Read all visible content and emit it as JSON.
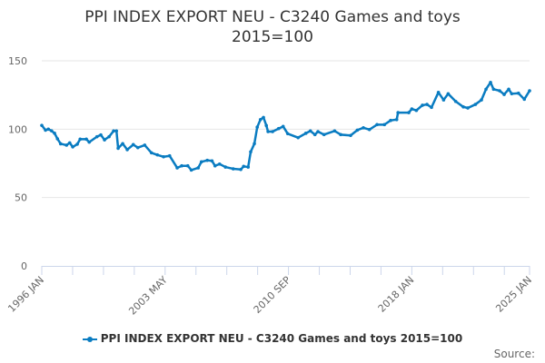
{
  "chart_data": {
    "type": "line",
    "title": "PPI INDEX EXPORT NEU - C3240 Games and toys",
    "subtitle": "2015=100",
    "xlabel": "",
    "ylabel": "",
    "ylim": [
      0,
      150
    ],
    "yticks": [
      0,
      50,
      100,
      150
    ],
    "xlim": [
      1996.0,
      2025.0
    ],
    "xtick_labels": [
      {
        "label": "1996 JAN",
        "x": 1996.0
      },
      {
        "label": "2003 MAY",
        "x": 2003.333
      },
      {
        "label": "2010 SEP",
        "x": 2010.667
      },
      {
        "label": "2018 JAN",
        "x": 2018.0
      },
      {
        "label": "2025 JAN",
        "x": 2025.0
      }
    ],
    "grid": true,
    "legend_position": "bottom",
    "series": [
      {
        "name": "PPI INDEX EXPORT NEU - C3240 Games and toys 2015=100",
        "color": "#0a7cc1",
        "points": [
          [
            1996.0,
            102.8
          ],
          [
            1996.22,
            99.3
          ],
          [
            1996.39,
            100.0
          ],
          [
            1996.58,
            98.8
          ],
          [
            1996.76,
            97.0
          ],
          [
            1996.93,
            93.0
          ],
          [
            1997.12,
            89.3
          ],
          [
            1997.47,
            88.3
          ],
          [
            1997.66,
            90.0
          ],
          [
            1997.84,
            87.0
          ],
          [
            1998.11,
            89.0
          ],
          [
            1998.28,
            92.7
          ],
          [
            1998.65,
            92.7
          ],
          [
            1998.82,
            90.5
          ],
          [
            1999.28,
            94.5
          ],
          [
            1999.51,
            95.8
          ],
          [
            1999.73,
            92.2
          ],
          [
            2000.0,
            94.5
          ],
          [
            2000.27,
            98.7
          ],
          [
            2000.44,
            98.7
          ],
          [
            2000.54,
            86.0
          ],
          [
            2000.81,
            89.4
          ],
          [
            2001.08,
            85.0
          ],
          [
            2001.44,
            88.7
          ],
          [
            2001.71,
            86.5
          ],
          [
            2002.12,
            88.3
          ],
          [
            2002.52,
            82.7
          ],
          [
            2002.87,
            81.2
          ],
          [
            2003.24,
            79.8
          ],
          [
            2003.6,
            80.5
          ],
          [
            2004.05,
            71.7
          ],
          [
            2004.32,
            73.2
          ],
          [
            2004.68,
            73.2
          ],
          [
            2004.89,
            70.1
          ],
          [
            2005.3,
            71.7
          ],
          [
            2005.49,
            76.1
          ],
          [
            2005.84,
            77.2
          ],
          [
            2006.12,
            76.8
          ],
          [
            2006.3,
            73.2
          ],
          [
            2006.57,
            74.5
          ],
          [
            2006.92,
            72.3
          ],
          [
            2007.38,
            71.0
          ],
          [
            2007.83,
            70.5
          ],
          [
            2008.0,
            72.8
          ],
          [
            2008.27,
            72.3
          ],
          [
            2008.42,
            83.4
          ],
          [
            2008.64,
            89.4
          ],
          [
            2008.81,
            101.5
          ],
          [
            2009.0,
            107.0
          ],
          [
            2009.18,
            108.6
          ],
          [
            2009.35,
            102.7
          ],
          [
            2009.45,
            98.2
          ],
          [
            2009.72,
            98.2
          ],
          [
            2010.08,
            100.4
          ],
          [
            2010.35,
            102.0
          ],
          [
            2010.62,
            96.7
          ],
          [
            2011.24,
            93.8
          ],
          [
            2011.7,
            97.0
          ],
          [
            2011.97,
            98.7
          ],
          [
            2012.24,
            96.0
          ],
          [
            2012.42,
            98.2
          ],
          [
            2012.78,
            96.0
          ],
          [
            2013.41,
            98.7
          ],
          [
            2013.77,
            96.0
          ],
          [
            2014.36,
            95.4
          ],
          [
            2014.76,
            99.3
          ],
          [
            2015.12,
            101.0
          ],
          [
            2015.48,
            99.7
          ],
          [
            2015.93,
            103.3
          ],
          [
            2016.37,
            103.3
          ],
          [
            2016.74,
            106.4
          ],
          [
            2017.1,
            107.0
          ],
          [
            2017.18,
            112.1
          ],
          [
            2017.82,
            112.1
          ],
          [
            2018.0,
            114.8
          ],
          [
            2018.27,
            113.7
          ],
          [
            2018.63,
            117.5
          ],
          [
            2018.9,
            118.1
          ],
          [
            2019.17,
            115.9
          ],
          [
            2019.58,
            126.9
          ],
          [
            2019.89,
            121.4
          ],
          [
            2020.16,
            125.9
          ],
          [
            2020.61,
            120.3
          ],
          [
            2021.06,
            116.3
          ],
          [
            2021.33,
            115.5
          ],
          [
            2021.78,
            118.1
          ],
          [
            2022.14,
            121.4
          ],
          [
            2022.41,
            129.2
          ],
          [
            2022.68,
            134.2
          ],
          [
            2022.86,
            129.2
          ],
          [
            2023.22,
            128.1
          ],
          [
            2023.49,
            125.4
          ],
          [
            2023.76,
            129.2
          ],
          [
            2023.94,
            125.9
          ],
          [
            2024.34,
            126.3
          ],
          [
            2024.69,
            121.9
          ],
          [
            2025.0,
            128.1
          ]
        ]
      }
    ],
    "source_label": "Source:"
  }
}
